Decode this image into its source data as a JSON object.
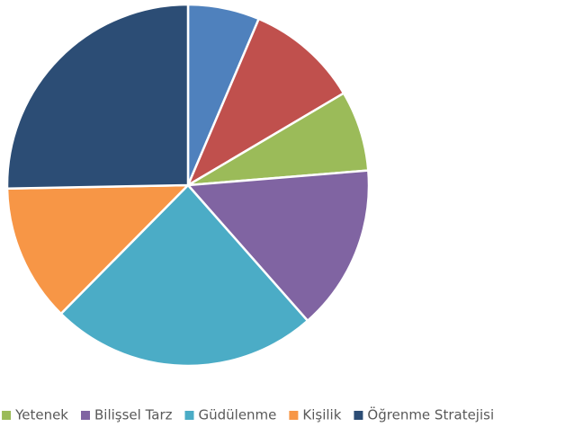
{
  "chart_data": {
    "type": "pie",
    "categories": [
      null,
      null,
      "Yetenek",
      "Bilişsel Tarz",
      "Güdülenme",
      "Kişilik",
      "Öğrenme Stratejisi"
    ],
    "values": [
      6.4,
      10.1,
      7.2,
      14.8,
      23.9,
      12.3,
      25.3
    ],
    "colors": [
      "#4f81bd",
      "#c0504d",
      "#9bbb59",
      "#8064a2",
      "#4bacc6",
      "#f79646",
      "#2c4d75"
    ],
    "legend": "bottom"
  }
}
